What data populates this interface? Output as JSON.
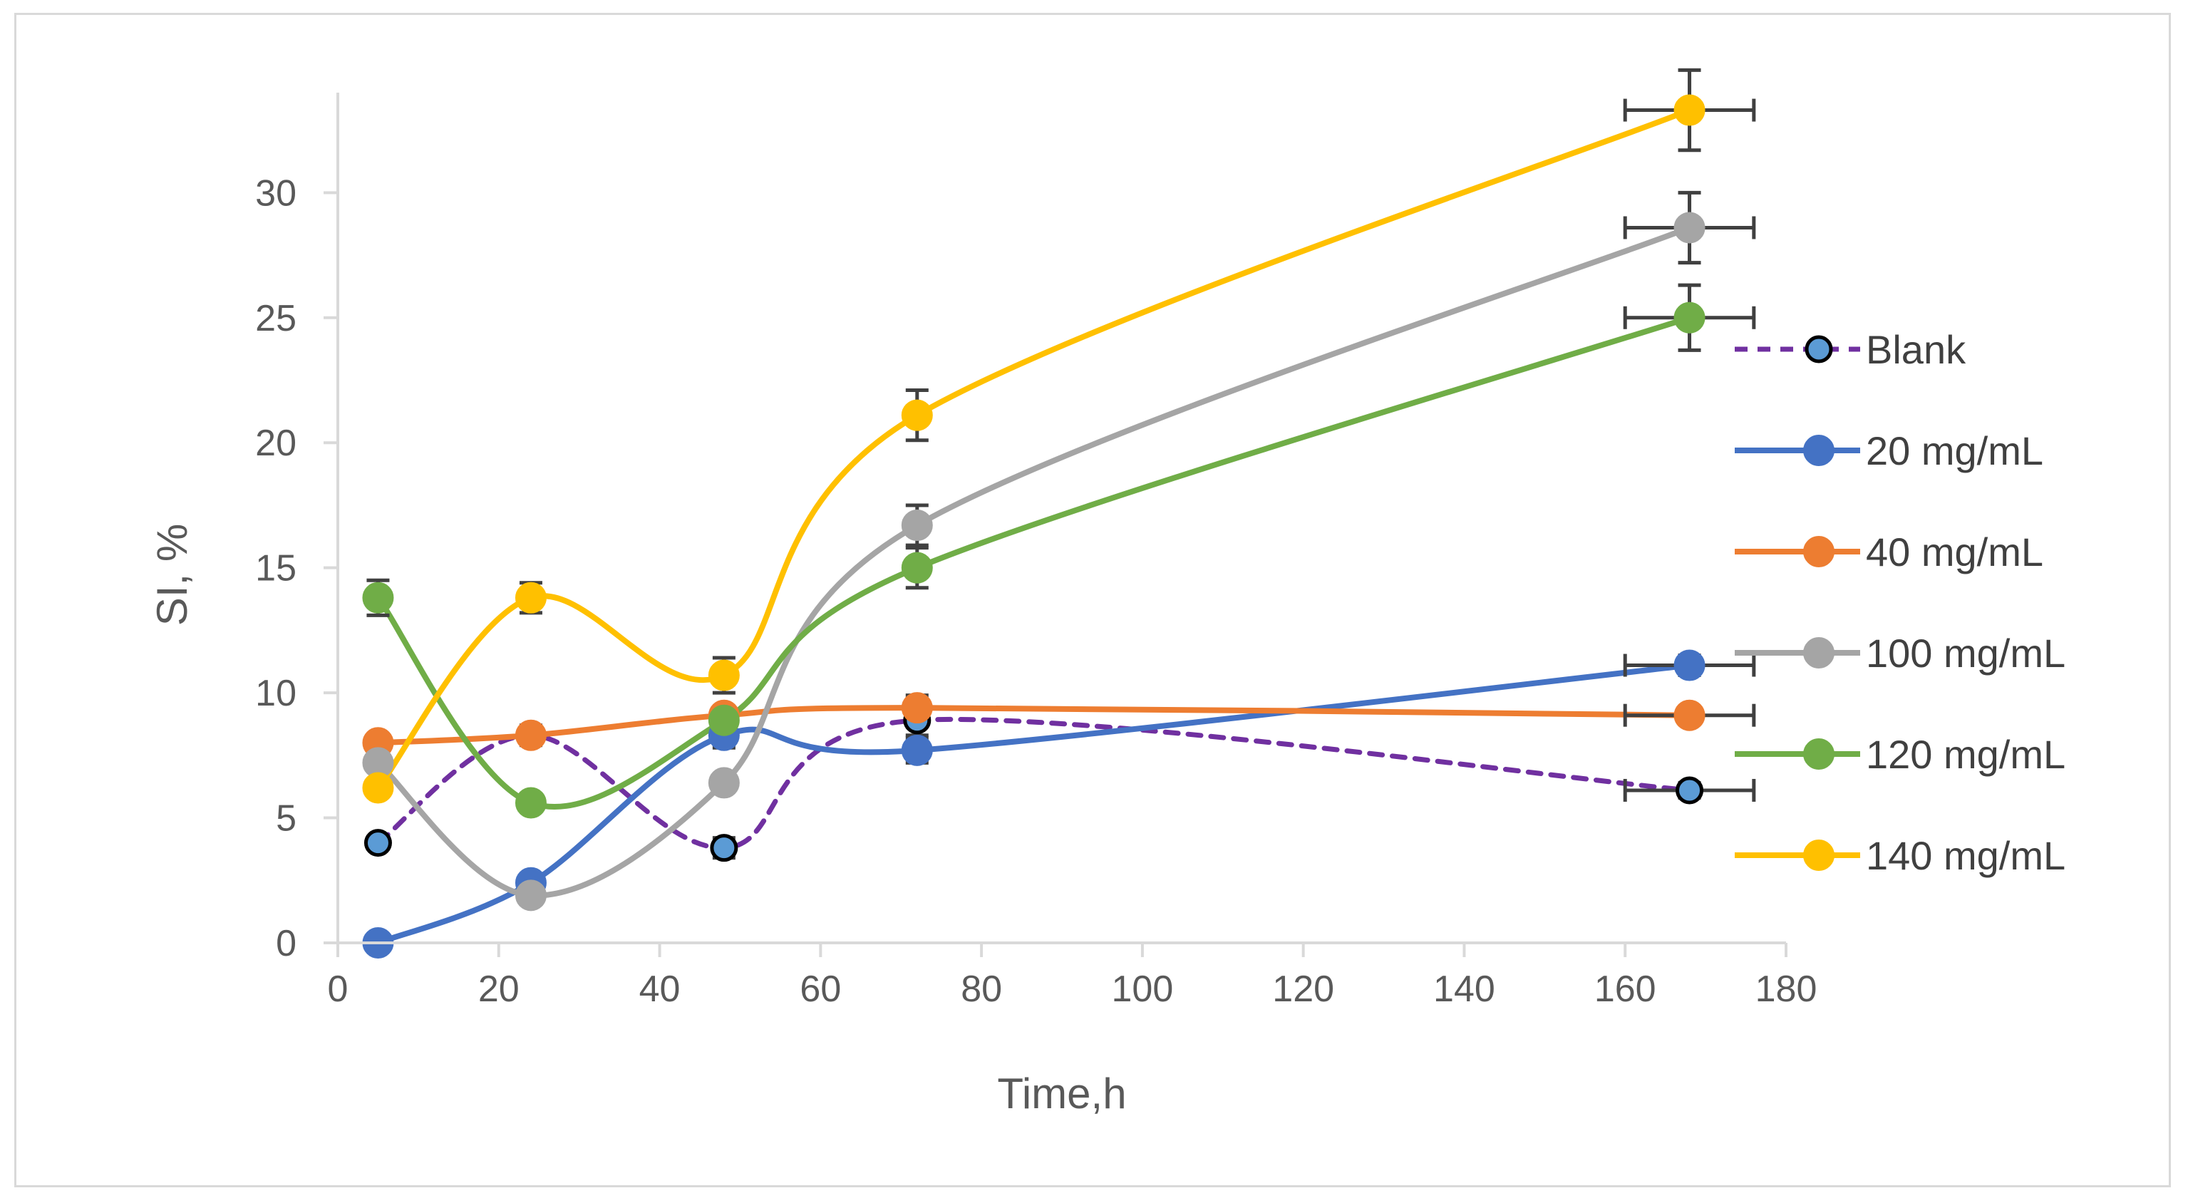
{
  "chart_data": {
    "type": "line",
    "title": "",
    "xlabel": "Time,h",
    "ylabel": "SI, %",
    "xlim": [
      0,
      180
    ],
    "ylim": [
      0,
      34
    ],
    "xticks": [
      0,
      20,
      40,
      60,
      80,
      100,
      120,
      140,
      160,
      180
    ],
    "yticks": [
      0,
      5,
      10,
      15,
      20,
      25,
      30
    ],
    "x": [
      5,
      24,
      48,
      72,
      168
    ],
    "series": [
      {
        "name": "Blank",
        "values": [
          4.0,
          8.3,
          3.8,
          8.9,
          6.1
        ],
        "color": "#7030a0",
        "marker_color": "#5b9bd5",
        "marker_edge": "#000000",
        "dashed": true,
        "x_error": [
          0,
          0,
          0,
          0,
          8
        ],
        "y_error": [
          0,
          0.4,
          0.4,
          0.6,
          0.3
        ]
      },
      {
        "name": "20 mg/mL",
        "values": [
          0.0,
          2.4,
          8.3,
          7.7,
          11.1
        ],
        "color": "#4472c4",
        "dashed": false,
        "x_error": [
          0,
          0,
          0,
          0,
          8
        ],
        "y_error": [
          0,
          0,
          0.5,
          0.5,
          0.4
        ]
      },
      {
        "name": "40 mg/mL",
        "values": [
          8.0,
          8.3,
          9.1,
          9.4,
          9.1
        ],
        "color": "#ed7d31",
        "dashed": false,
        "x_error": [
          0,
          0,
          0,
          0,
          8
        ],
        "y_error": [
          0,
          0,
          0,
          0.5,
          0.3
        ]
      },
      {
        "name": "100 mg/mL",
        "values": [
          7.2,
          1.9,
          6.4,
          16.7,
          28.6
        ],
        "color": "#a5a5a5",
        "dashed": false,
        "x_error": [
          0,
          0,
          0,
          0,
          8
        ],
        "y_error": [
          0,
          0,
          0,
          0.8,
          1.4
        ]
      },
      {
        "name": "120 mg/mL",
        "values": [
          13.8,
          5.6,
          8.9,
          15.0,
          25.0
        ],
        "color": "#70ad47",
        "dashed": false,
        "x_error": [
          0,
          0,
          0,
          0,
          8
        ],
        "y_error": [
          0.7,
          0,
          0,
          0.8,
          1.3
        ]
      },
      {
        "name": "140 mg/mL",
        "values": [
          6.2,
          13.8,
          10.7,
          21.1,
          33.3
        ],
        "color": "#ffc000",
        "dashed": false,
        "x_error": [
          0,
          0,
          0,
          0,
          8
        ],
        "y_error": [
          0,
          0.6,
          0.7,
          1.0,
          1.6
        ]
      }
    ],
    "grid": false,
    "legend_position": "right",
    "colors": {
      "axis": "#d9d9d9",
      "text": "#595959",
      "error_bar": "#404040"
    }
  }
}
